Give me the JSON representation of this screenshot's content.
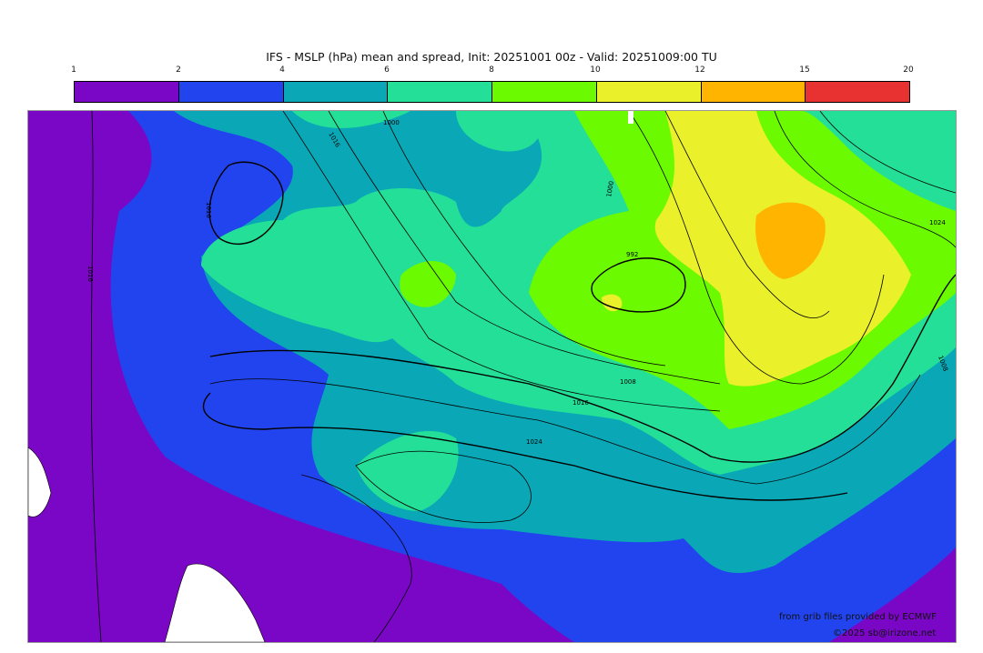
{
  "title": "IFS - MSLP (hPa) mean and spread, Init: 20251001 00z - Valid: 20251009:00 TU",
  "colorbar": {
    "ticks": [
      "1",
      "2",
      "4",
      "6",
      "8",
      "10",
      "12",
      "15",
      "20"
    ],
    "colors": [
      "#7a06c6",
      "#2244ee",
      "#0aa8b6",
      "#24df98",
      "#6cfa00",
      "#eaf02a",
      "#ffb400",
      "#e83232"
    ]
  },
  "isobar_labels": [
    "1016",
    "1008",
    "1000",
    "992",
    "1016",
    "1024",
    "1016",
    "1000",
    "1024",
    "1016",
    "1008"
  ],
  "credits": {
    "source": "from grib files provided by ECMWF",
    "copyright": "©2025 sb@irizone.net"
  }
}
